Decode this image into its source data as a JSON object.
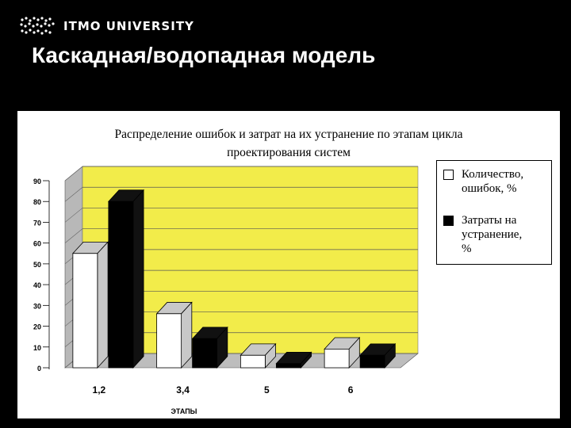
{
  "header": {
    "logo_text": "ITMO UNIVERSITY",
    "slide_title": "Каскадная/водопадная модель"
  },
  "colors": {
    "background": "#000000",
    "plot_area": "#f2ec4a",
    "series_white": "#ffffff",
    "series_black": "#000000",
    "wall_side": "#b8b8b8",
    "floor": "#bdbdbd"
  },
  "chart_data": {
    "type": "bar",
    "title_lines": [
      "Распределение ошибок и затрат на их устранение по этапам цикла",
      "проектирования систем"
    ],
    "categories": [
      "1,2",
      "3,4",
      "5",
      "6"
    ],
    "series": [
      {
        "name": "Количество, ошибок, %",
        "values": [
          55,
          26,
          6,
          9
        ]
      },
      {
        "name": "Затраты на устранение, %",
        "values": [
          80,
          14,
          2,
          6
        ]
      }
    ],
    "xlabel": "ЭТАПЫ",
    "ylabel": "",
    "ylim": [
      0,
      90
    ],
    "yticks": [
      "0",
      "10",
      "20",
      "30",
      "40",
      "50",
      "60",
      "70",
      "80",
      "90"
    ],
    "grid": true,
    "style": "3d-columns",
    "legend": {
      "placement": "right",
      "items": [
        {
          "label": "Количество,\nошибок, %",
          "icon": "white-square-icon"
        },
        {
          "label": "Затраты на\nустранение,\n%",
          "icon": "black-square-icon"
        }
      ]
    }
  }
}
